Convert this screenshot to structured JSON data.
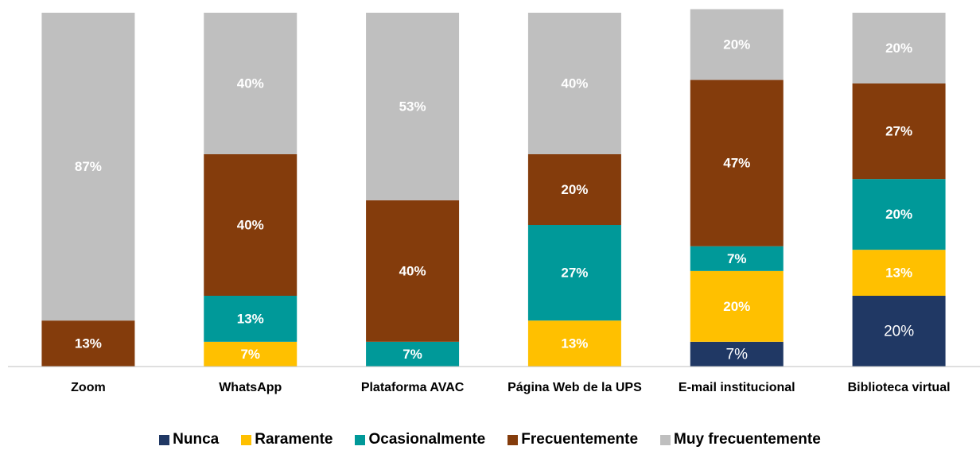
{
  "chart_data": {
    "type": "stacked_bar",
    "categories": [
      "Zoom",
      "WhatsApp",
      "Plataforma AVAC",
      "Página Web de la UPS",
      "E-mail institucional",
      "Biblioteca virtual"
    ],
    "ylim": [
      0,
      100
    ],
    "legend": "bottom",
    "series": [
      {
        "name": "Nunca",
        "color": "#203864",
        "values": [
          null,
          null,
          null,
          null,
          7,
          20
        ],
        "value_labels": [
          null,
          null,
          null,
          null,
          "7%",
          "20%"
        ]
      },
      {
        "name": "Raramente",
        "color": "#ffc000",
        "values": [
          null,
          7,
          null,
          13,
          20,
          13
        ],
        "value_labels": [
          null,
          "7%",
          null,
          "13%",
          "20%",
          "13%"
        ]
      },
      {
        "name": "Ocasionalmente",
        "color": "#009999",
        "values": [
          null,
          13,
          7,
          27,
          7,
          20
        ],
        "value_labels": [
          null,
          "13%",
          "7%",
          "27%",
          "7%",
          "20%"
        ]
      },
      {
        "name": "Frecuentemente",
        "color": "#843c0c",
        "values": [
          13,
          40,
          40,
          20,
          47,
          27
        ],
        "value_labels": [
          "13%",
          "40%",
          "40%",
          "20%",
          "47%",
          "27%"
        ]
      },
      {
        "name": "Muy frecuentemente",
        "color": "#bfbfbf",
        "values": [
          87,
          40,
          53,
          40,
          20,
          20
        ],
        "value_labels": [
          "87%",
          "40%",
          "53%",
          "40%",
          "20%",
          "20%"
        ]
      }
    ]
  }
}
